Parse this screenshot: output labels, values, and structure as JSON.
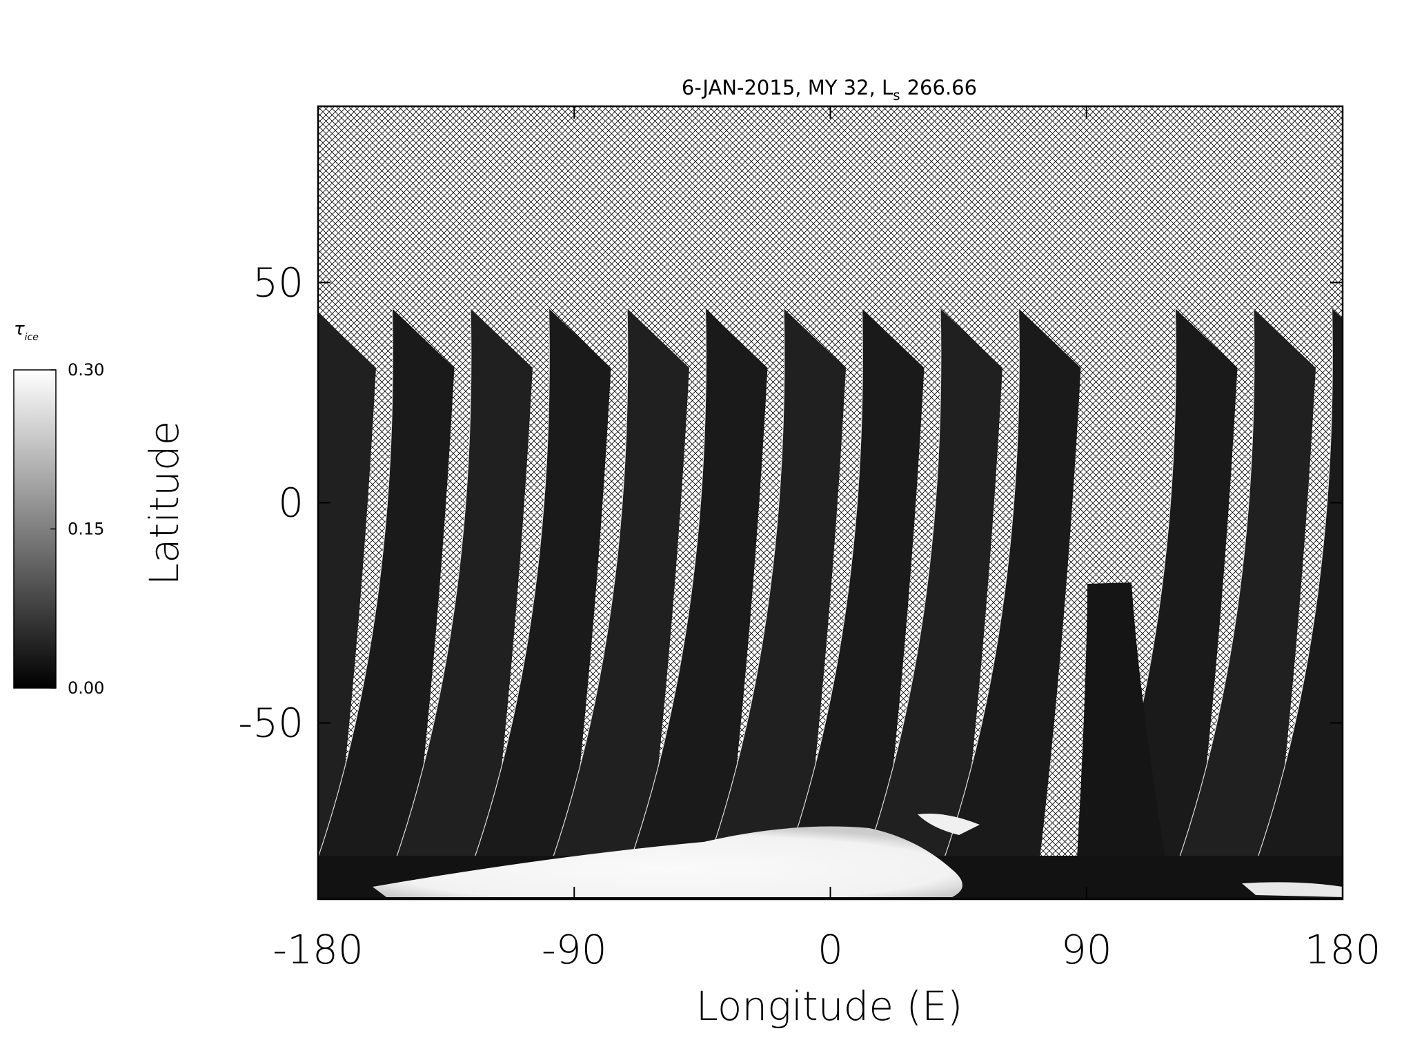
{
  "chart_data": {
    "type": "map",
    "title": "6-JAN-2015, MY 32,  L",
    "title_subscript": "s",
    "title_suffix": "266.66",
    "x_label": "Longitude (E)",
    "y_label": "Latitude",
    "xlim": [
      -180,
      180
    ],
    "ylim": [
      -90,
      90
    ],
    "xticks": [
      -180,
      -90,
      0,
      90,
      180
    ],
    "yticks": [
      -50,
      0,
      50
    ],
    "colorbar": {
      "label": "τ",
      "label_subscript": "ice",
      "lim": [
        0,
        0.3
      ],
      "ticks": [
        {
          "value": 0,
          "label": "0.00"
        },
        {
          "value": 0.15,
          "label": "0.15"
        },
        {
          "value": 0.3,
          "label": "0.30"
        }
      ],
      "colors": [
        "#000000",
        "#ffffff"
      ]
    }
  }
}
